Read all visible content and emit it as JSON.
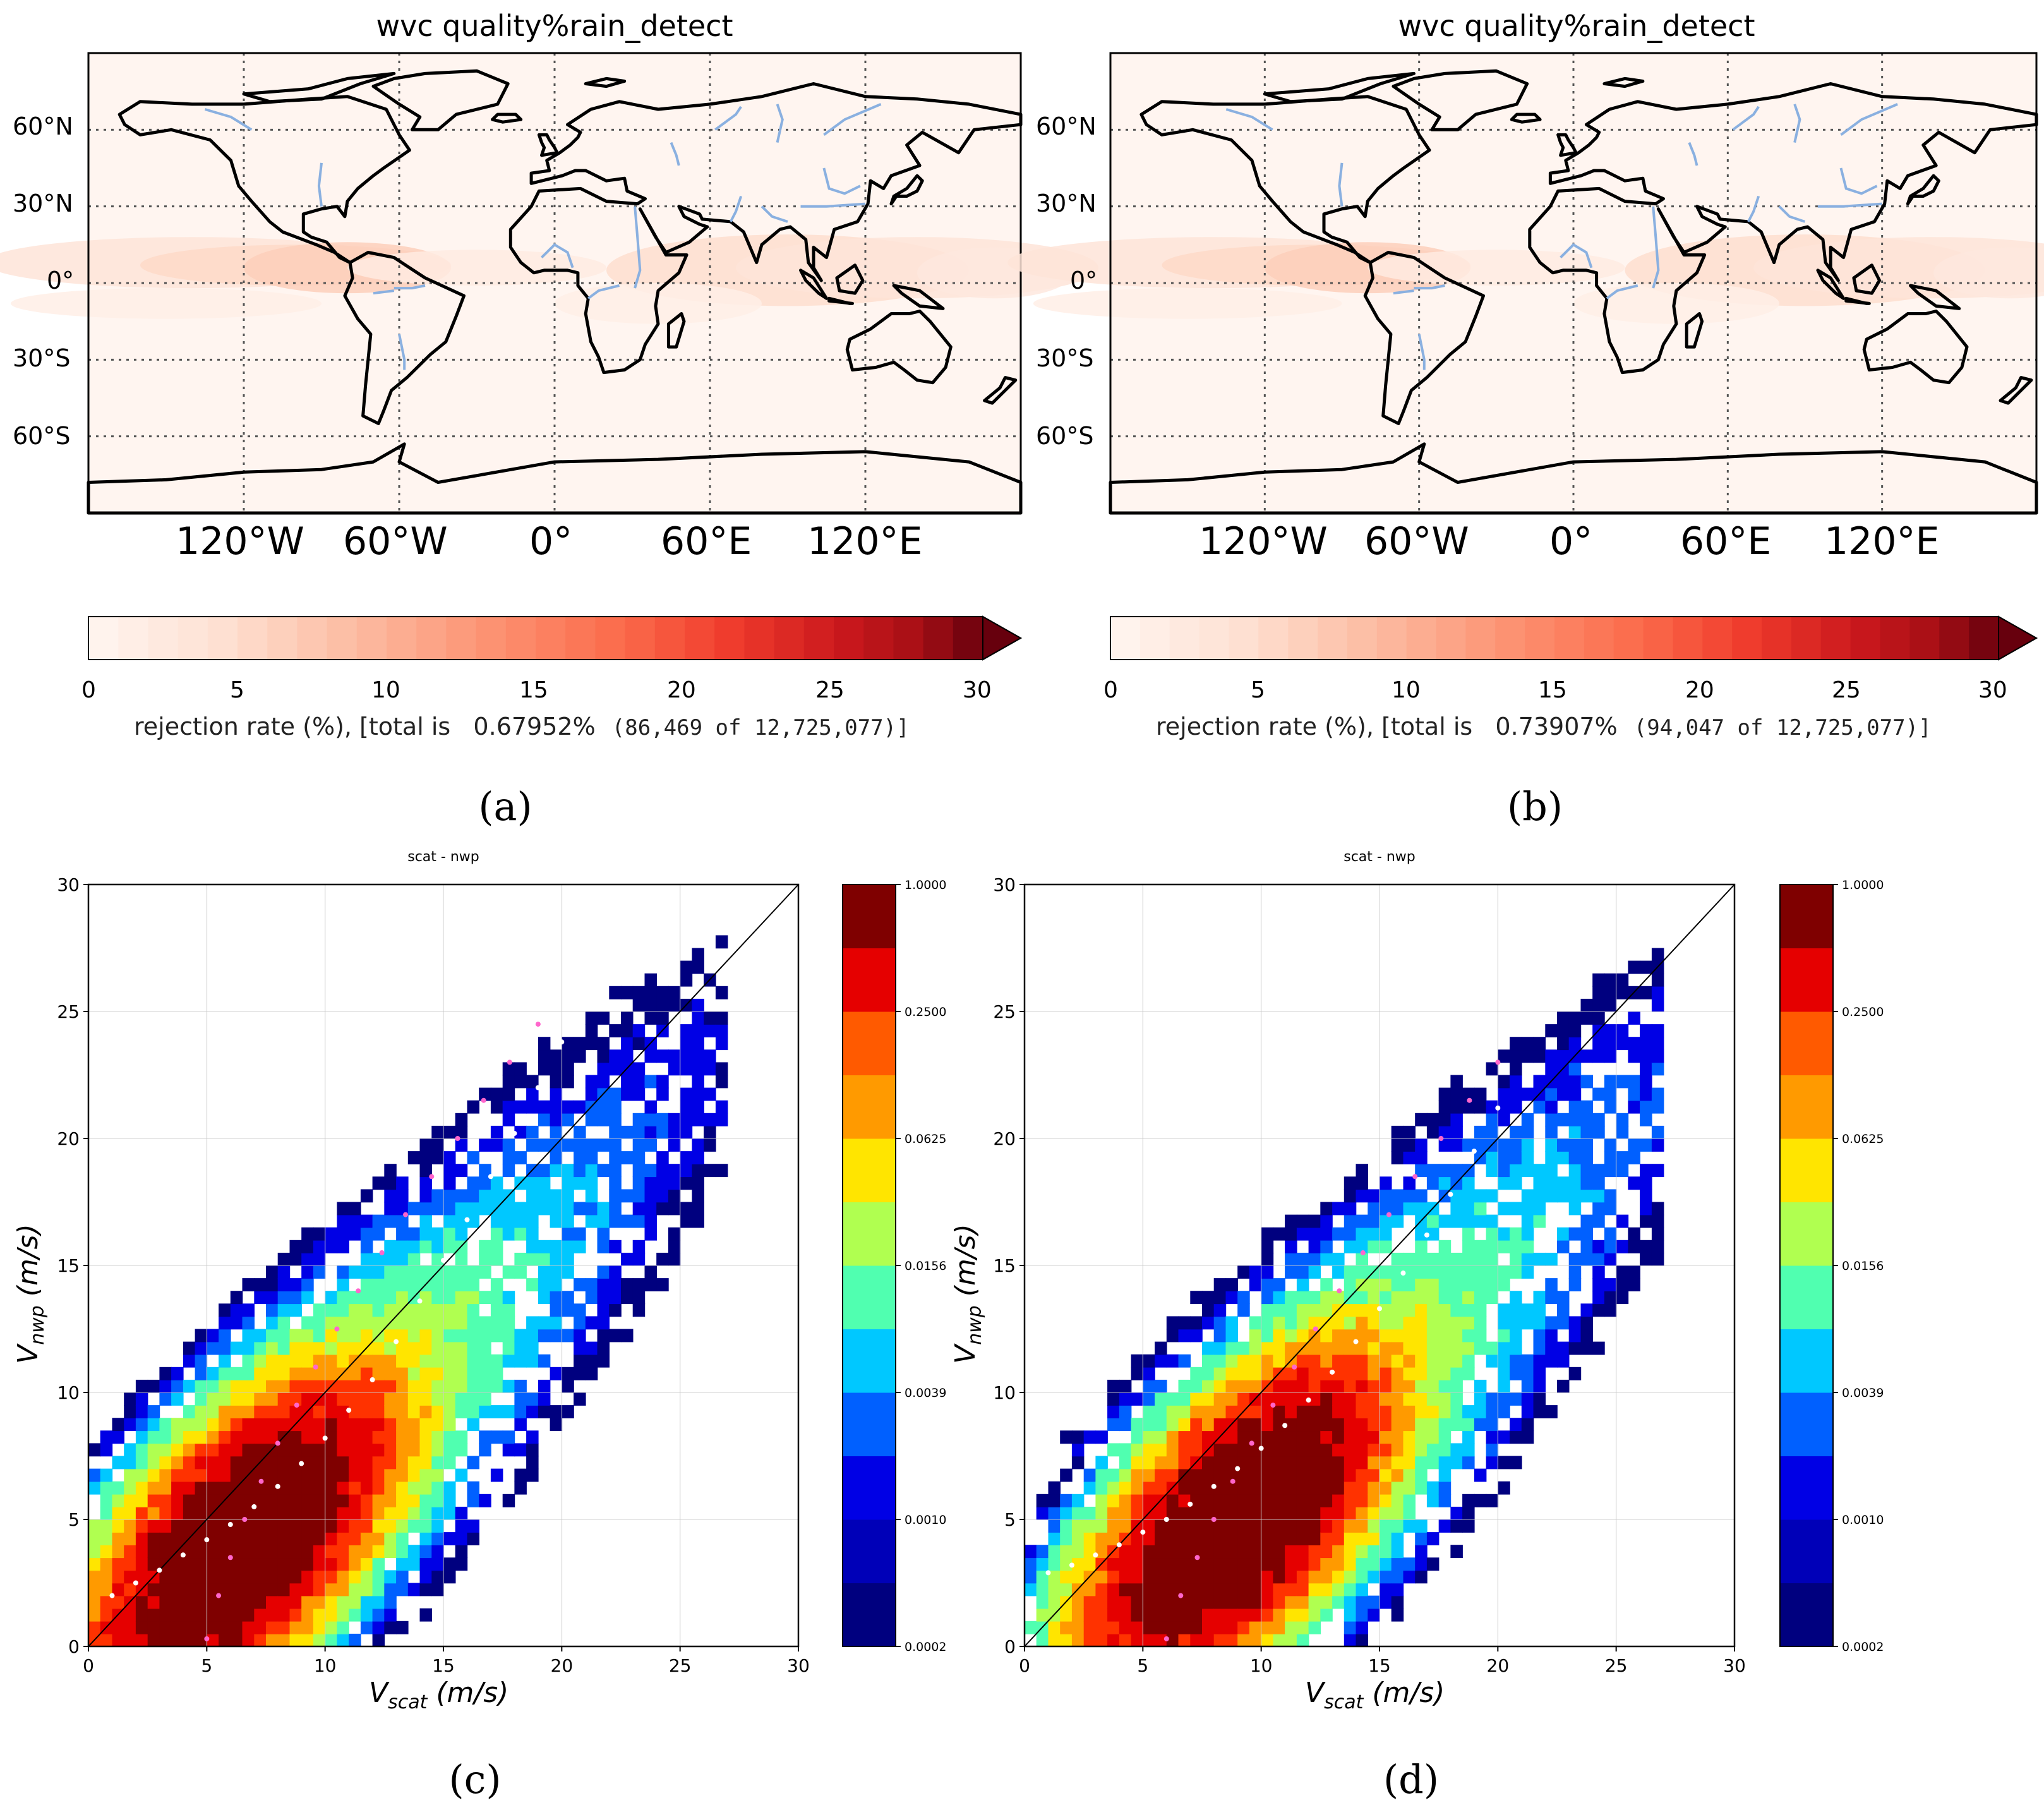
{
  "colors": {
    "reds_low": "#fff5f0",
    "reds_high": "#67000d",
    "land_line": "#000000",
    "rivers": "#8ab0e0",
    "jet": [
      "#00007f",
      "#0000e5",
      "#0060ff",
      "#00c8ff",
      "#50ffb0",
      "#b0ff50",
      "#ffe500",
      "#ff9a00",
      "#ff3200",
      "#e50000",
      "#7f0000"
    ],
    "pink_dots": "#ff66cc",
    "white_dots": "#ffffff"
  },
  "chart_data": [
    {
      "id": "a",
      "type": "heatmap",
      "title": "wvc quality%rain_detect",
      "lon_ticks": [
        "120°W",
        "60°W",
        "0°",
        "60°E",
        "120°E"
      ],
      "lat_ticks": [
        "60°N",
        "30°N",
        "0°",
        "30°S",
        "60°S"
      ],
      "colorbar": {
        "ticks": [
          "0",
          "5",
          "10",
          "15",
          "20",
          "25",
          "30"
        ],
        "range": [
          0,
          30
        ],
        "extend": "max"
      },
      "label_main": "rejection rate (%), [total is   0.67952%",
      "label_count": "(86,469 of 12,725,077)]",
      "panel_label": "(a)"
    },
    {
      "id": "b",
      "type": "heatmap",
      "title": "wvc quality%rain_detect",
      "lon_ticks": [
        "120°W",
        "60°W",
        "0°",
        "60°E",
        "120°E"
      ],
      "lat_ticks": [
        "60°N",
        "30°N",
        "0°",
        "30°S",
        "60°S"
      ],
      "colorbar": {
        "ticks": [
          "0",
          "5",
          "10",
          "15",
          "20",
          "25",
          "30"
        ],
        "range": [
          0,
          30
        ],
        "extend": "max"
      },
      "label_main": "rejection rate (%), [total is   0.73907%",
      "label_count": "(94,047 of 12,725,077)]",
      "panel_label": "(b)"
    },
    {
      "id": "c",
      "type": "heatmap",
      "title": "scat - nwp",
      "xlabel": "V",
      "xlabel_sub": "scat",
      "xlabel_unit": " (m/s)",
      "ylabel": "V",
      "ylabel_sub": "nwp",
      "ylabel_unit": " (m/s)",
      "xlim": [
        0,
        30
      ],
      "ylim": [
        0,
        30
      ],
      "x_ticks": [
        "0",
        "5",
        "10",
        "15",
        "20",
        "25",
        "30"
      ],
      "y_ticks": [
        "0",
        "5",
        "10",
        "15",
        "20",
        "25",
        "30"
      ],
      "colorbar_ticks": [
        "1.0000",
        "0.2500",
        "0.0625",
        "0.0156",
        "0.0039",
        "0.0010",
        "0.0002"
      ],
      "peak": [
        6.5,
        4.2
      ],
      "spread": [
        3.6,
        2.9
      ],
      "white_dots": [
        [
          1,
          2.0
        ],
        [
          2,
          2.5
        ],
        [
          3,
          3.0
        ],
        [
          4,
          3.6
        ],
        [
          5,
          4.2
        ],
        [
          6,
          4.8
        ],
        [
          7,
          5.5
        ],
        [
          8,
          6.3
        ],
        [
          9,
          7.2
        ],
        [
          10,
          8.2
        ],
        [
          11,
          9.3
        ],
        [
          12,
          10.5
        ],
        [
          13,
          12.0
        ],
        [
          14,
          13.6
        ],
        [
          15,
          15.2
        ],
        [
          16,
          16.8
        ],
        [
          17,
          18.5
        ],
        [
          18,
          20.2
        ],
        [
          19,
          22.0
        ],
        [
          20,
          23.8
        ]
      ],
      "pink_dots": [
        [
          5,
          0.3
        ],
        [
          5.5,
          2.0
        ],
        [
          6.0,
          3.5
        ],
        [
          6.6,
          5.0
        ],
        [
          7.3,
          6.5
        ],
        [
          8.0,
          8.0
        ],
        [
          8.8,
          9.5
        ],
        [
          9.6,
          11.0
        ],
        [
          10.5,
          12.5
        ],
        [
          11.4,
          14.0
        ],
        [
          12.4,
          15.5
        ],
        [
          13.4,
          17.0
        ],
        [
          14.5,
          18.5
        ],
        [
          15.6,
          20.0
        ],
        [
          16.7,
          21.5
        ],
        [
          17.8,
          23.0
        ],
        [
          19.0,
          24.5
        ]
      ],
      "panel_label": "(c)"
    },
    {
      "id": "d",
      "type": "heatmap",
      "title": "scat - nwp",
      "xlabel": "V",
      "xlabel_sub": "scat",
      "xlabel_unit": " (m/s)",
      "ylabel": "V",
      "ylabel_sub": "nwp",
      "ylabel_unit": " (m/s)",
      "xlim": [
        0,
        30
      ],
      "ylim": [
        0,
        30
      ],
      "x_ticks": [
        "0",
        "5",
        "10",
        "15",
        "20",
        "25",
        "30"
      ],
      "y_ticks": [
        "0",
        "5",
        "10",
        "15",
        "20",
        "25",
        "30"
      ],
      "colorbar_ticks": [
        "1.0000",
        "0.2500",
        "0.0625",
        "0.0156",
        "0.0039",
        "0.0010",
        "0.0002"
      ],
      "peak": [
        9.0,
        5.0
      ],
      "spread": [
        4.0,
        3.1
      ],
      "white_dots": [
        [
          1,
          2.9
        ],
        [
          2,
          3.2
        ],
        [
          3,
          3.6
        ],
        [
          4,
          4.0
        ],
        [
          5,
          4.5
        ],
        [
          6,
          5.0
        ],
        [
          7,
          5.6
        ],
        [
          8,
          6.3
        ],
        [
          9,
          7.0
        ],
        [
          10,
          7.8
        ],
        [
          11,
          8.7
        ],
        [
          12,
          9.7
        ],
        [
          13,
          10.8
        ],
        [
          14,
          12.0
        ],
        [
          15,
          13.3
        ],
        [
          16,
          14.7
        ],
        [
          17,
          16.2
        ],
        [
          18,
          17.8
        ],
        [
          19,
          19.5
        ],
        [
          20,
          21.2
        ]
      ],
      "pink_dots": [
        [
          6,
          0.3
        ],
        [
          6.6,
          2.0
        ],
        [
          7.3,
          3.5
        ],
        [
          8.0,
          5.0
        ],
        [
          8.8,
          6.5
        ],
        [
          9.6,
          8.0
        ],
        [
          10.5,
          9.5
        ],
        [
          11.4,
          11.0
        ],
        [
          12.3,
          12.5
        ],
        [
          13.3,
          14.0
        ],
        [
          14.3,
          15.5
        ],
        [
          15.4,
          17.0
        ],
        [
          16.5,
          18.5
        ],
        [
          17.6,
          20.0
        ],
        [
          18.8,
          21.5
        ],
        [
          20.0,
          23.0
        ]
      ],
      "panel_label": "(d)"
    }
  ]
}
